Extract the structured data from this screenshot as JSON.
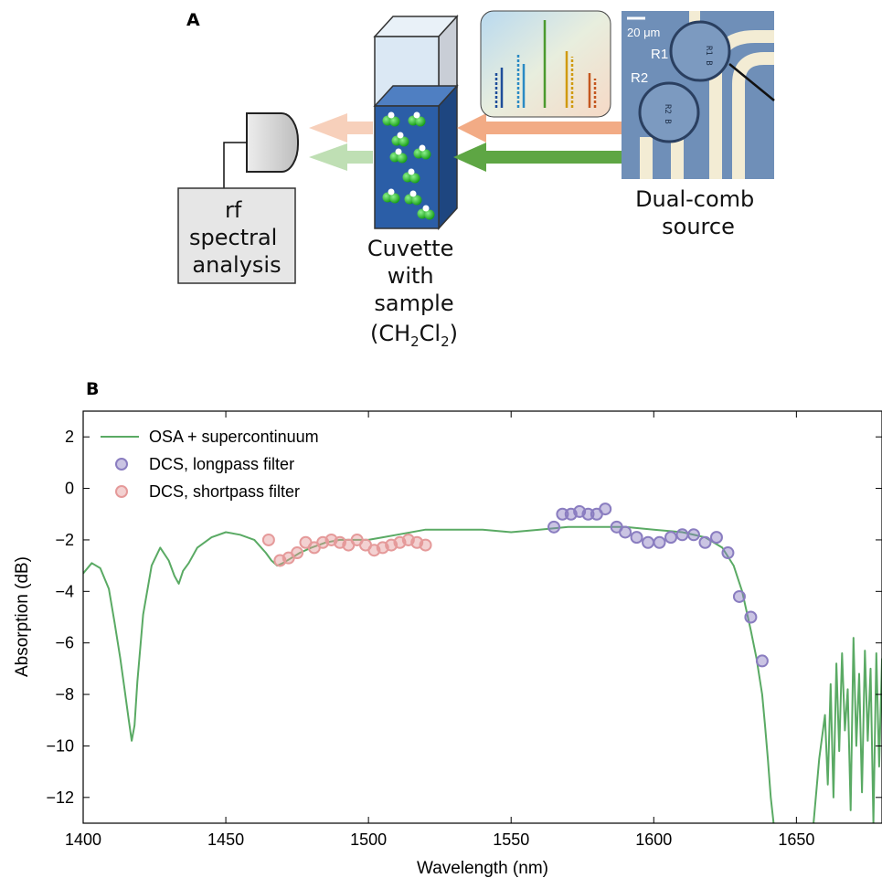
{
  "panel_a": {
    "label": "A",
    "detector_box_lines": [
      "rf",
      "spectral",
      "analysis"
    ],
    "cuvette_lines": [
      "Cuvette",
      "with",
      "sample"
    ],
    "formula": {
      "open": "(CH",
      "sub1": "2",
      "mid": "Cl",
      "sub2": "2",
      "close": ")"
    },
    "source_lines": [
      "Dual-comb",
      "source"
    ],
    "micrograph": {
      "scale_label": "20 μm",
      "r1": "R1",
      "r2": "R2"
    },
    "colors": {
      "comb_orange": "#f2ab85",
      "comb_green": "#5ea644",
      "cuvette_blue": "#2b5ea7",
      "molecule_green": "#2bb52b",
      "chip_blue": "#6f8fb8"
    },
    "icons": [
      "photodetector-icon",
      "cuvette-icon",
      "spectrum-inset-icon",
      "microresonator-chip-icon",
      "molecule-icon"
    ]
  },
  "chart_data": {
    "type": "line",
    "panel_label": "B",
    "xlabel": "Wavelength (nm)",
    "ylabel": "Absorption (dB)",
    "xlim": [
      1400,
      1680
    ],
    "ylim": [
      -13,
      3
    ],
    "xticks": [
      1400,
      1450,
      1500,
      1550,
      1600,
      1650
    ],
    "yticks": [
      2,
      0,
      -2,
      -4,
      -6,
      -8,
      -10,
      -12
    ],
    "ytick_labels": [
      "2",
      "0",
      "−2",
      "−4",
      "−6",
      "−8",
      "−10",
      "−12"
    ],
    "grid": false,
    "legend_position": "top-left",
    "series": [
      {
        "name": "OSA + supercontinuum",
        "kind": "line",
        "color": "#5aaa64",
        "x": [
          1400,
          1403,
          1406,
          1409,
          1411,
          1413,
          1414.5,
          1416,
          1417,
          1418,
          1419,
          1421,
          1424,
          1427,
          1430,
          1432,
          1433.5,
          1435,
          1437,
          1440,
          1445,
          1450,
          1455,
          1460,
          1464,
          1466,
          1468,
          1470,
          1473,
          1476,
          1480,
          1485,
          1490,
          1495,
          1500,
          1505,
          1510,
          1520,
          1530,
          1540,
          1550,
          1560,
          1570,
          1580,
          1590,
          1600,
          1610,
          1618,
          1624,
          1628,
          1631,
          1634,
          1636,
          1638,
          1639,
          1640,
          1641,
          1642
        ],
        "y": [
          -3.3,
          -2.9,
          -3.1,
          -3.9,
          -5.2,
          -6.6,
          -7.8,
          -9.0,
          -9.8,
          -9.2,
          -7.5,
          -4.9,
          -3.0,
          -2.3,
          -2.8,
          -3.4,
          -3.7,
          -3.2,
          -2.9,
          -2.3,
          -1.9,
          -1.7,
          -1.8,
          -2.0,
          -2.5,
          -2.8,
          -3.0,
          -2.9,
          -2.7,
          -2.5,
          -2.3,
          -2.1,
          -2.0,
          -2.0,
          -2.0,
          -1.9,
          -1.8,
          -1.6,
          -1.6,
          -1.6,
          -1.7,
          -1.6,
          -1.5,
          -1.5,
          -1.5,
          -1.6,
          -1.7,
          -1.9,
          -2.3,
          -3.0,
          -4.0,
          -5.5,
          -6.6,
          -8.0,
          -9.2,
          -10.5,
          -12.0,
          -13.0
        ]
      },
      {
        "name": "OSA + supercontinuum",
        "kind": "line",
        "color": "#5aaa64",
        "x": [
          1656,
          1658,
          1660,
          1661,
          1662,
          1663,
          1664,
          1665,
          1666,
          1667,
          1668,
          1669,
          1670,
          1671,
          1672,
          1673,
          1674,
          1675,
          1676,
          1677,
          1678,
          1679,
          1680
        ],
        "y": [
          -13.0,
          -10.5,
          -8.8,
          -11.5,
          -7.6,
          -12.0,
          -6.8,
          -10.2,
          -6.4,
          -9.4,
          -7.8,
          -12.5,
          -5.8,
          -10.0,
          -7.2,
          -11.8,
          -6.3,
          -9.8,
          -7.0,
          -13.0,
          -6.4,
          -10.8,
          -6.6
        ]
      },
      {
        "name": "DCS, longpass filter",
        "kind": "scatter",
        "color": "#8a7dc0",
        "x": [
          1565,
          1568,
          1571,
          1574,
          1577,
          1580,
          1583,
          1587,
          1590,
          1594,
          1598,
          1602,
          1606,
          1610,
          1614,
          1618,
          1622,
          1626,
          1630,
          1634,
          1638
        ],
        "y": [
          -1.5,
          -1.0,
          -1.0,
          -0.9,
          -1.0,
          -1.0,
          -0.8,
          -1.5,
          -1.7,
          -1.9,
          -2.1,
          -2.1,
          -1.9,
          -1.8,
          -1.8,
          -2.1,
          -1.9,
          -2.5,
          -4.2,
          -5.0,
          -6.7
        ]
      },
      {
        "name": "DCS, shortpass filter",
        "kind": "scatter",
        "color": "#e59a9a",
        "x": [
          1465,
          1469,
          1472,
          1475,
          1478,
          1481,
          1484,
          1487,
          1490,
          1493,
          1496,
          1499,
          1502,
          1505,
          1508,
          1511,
          1514,
          1517,
          1520
        ],
        "y": [
          -2.0,
          -2.8,
          -2.7,
          -2.5,
          -2.1,
          -2.3,
          -2.1,
          -2.0,
          -2.1,
          -2.2,
          -2.0,
          -2.2,
          -2.4,
          -2.3,
          -2.2,
          -2.1,
          -2.0,
          -2.1,
          -2.2
        ]
      }
    ],
    "legend": [
      {
        "name": "OSA + supercontinuum",
        "kind": "line",
        "color": "#5aaa64"
      },
      {
        "name": "DCS, longpass filter",
        "kind": "scatter",
        "color": "#8a7dc0"
      },
      {
        "name": "DCS, shortpass filter",
        "kind": "scatter",
        "color": "#e59a9a"
      }
    ]
  }
}
